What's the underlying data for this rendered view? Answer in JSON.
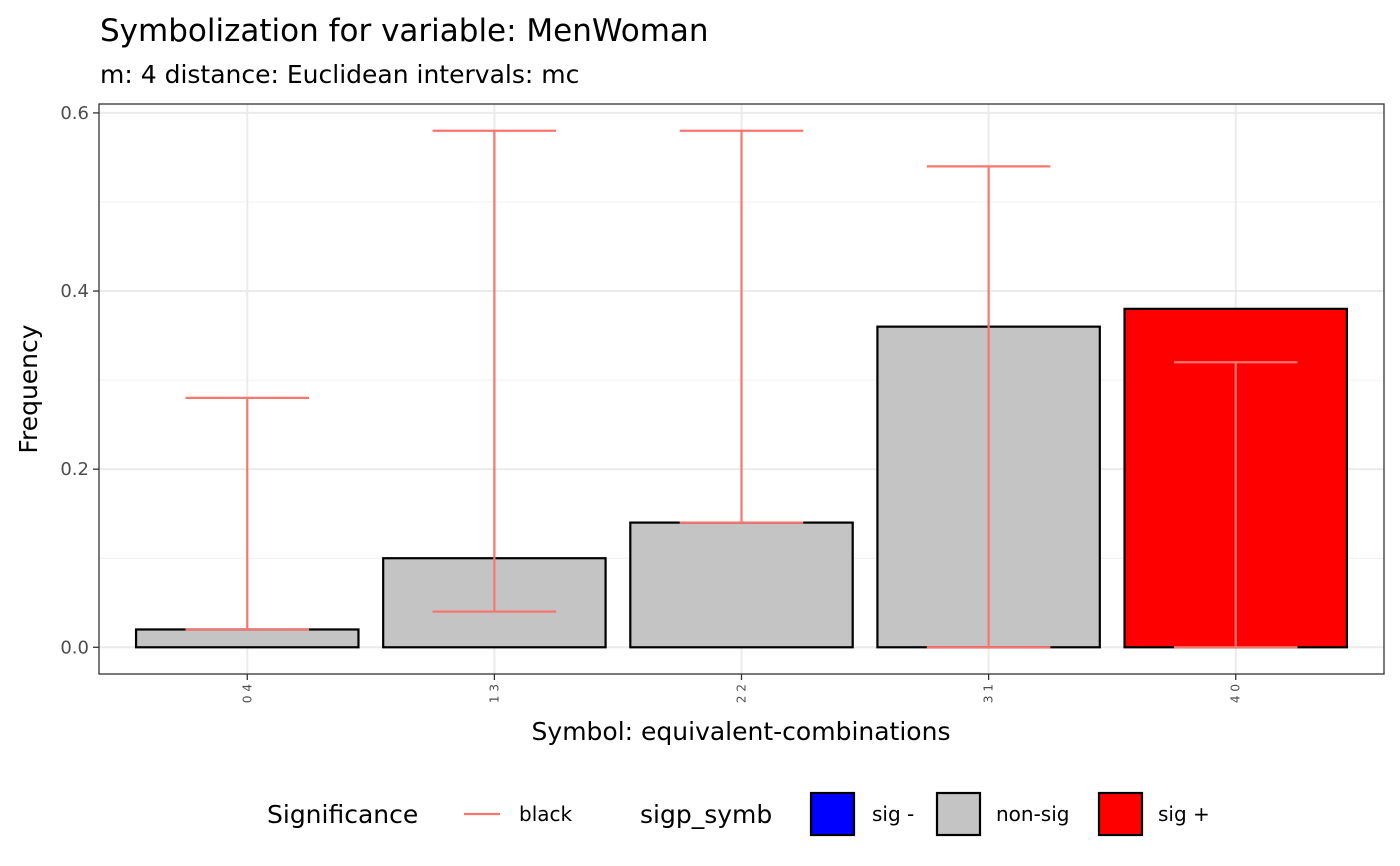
{
  "chart_data": {
    "type": "bar",
    "title": "Symbolization for variable: MenWoman",
    "subtitle": "m: 4  distance:  Euclidean  intervals:  mc",
    "xlabel": "Symbol: equivalent-combinations",
    "ylabel": "Frequency",
    "categories": [
      "0 4",
      "1 3",
      "2 2",
      "3 1",
      "4 0"
    ],
    "values": [
      0.02,
      0.1,
      0.14,
      0.36,
      0.38
    ],
    "significance": [
      "non-sig",
      "non-sig",
      "non-sig",
      "non-sig",
      "sig +"
    ],
    "intervals": {
      "lower": [
        0.02,
        0.04,
        0.14,
        0.0,
        0.0
      ],
      "upper": [
        0.28,
        0.58,
        0.58,
        0.54,
        0.32
      ]
    },
    "ylim": [
      -0.03,
      0.61
    ],
    "yticks": [
      0.0,
      0.2,
      0.4,
      0.6
    ],
    "ytick_labels": [
      "0.0",
      "0.2",
      "0.4",
      "0.6"
    ],
    "grid": true,
    "legend_position": "bottom",
    "legend": {
      "line_title": "Significance",
      "line_label": "black",
      "line_color": "#F8766D",
      "fill_title": "sigp_symb",
      "fill_entries": [
        {
          "label": "sig -",
          "color": "#0000FF"
        },
        {
          "label": "non-sig",
          "color": "#C4C4C4"
        },
        {
          "label": "sig +",
          "color": "#FF0000"
        }
      ]
    }
  }
}
